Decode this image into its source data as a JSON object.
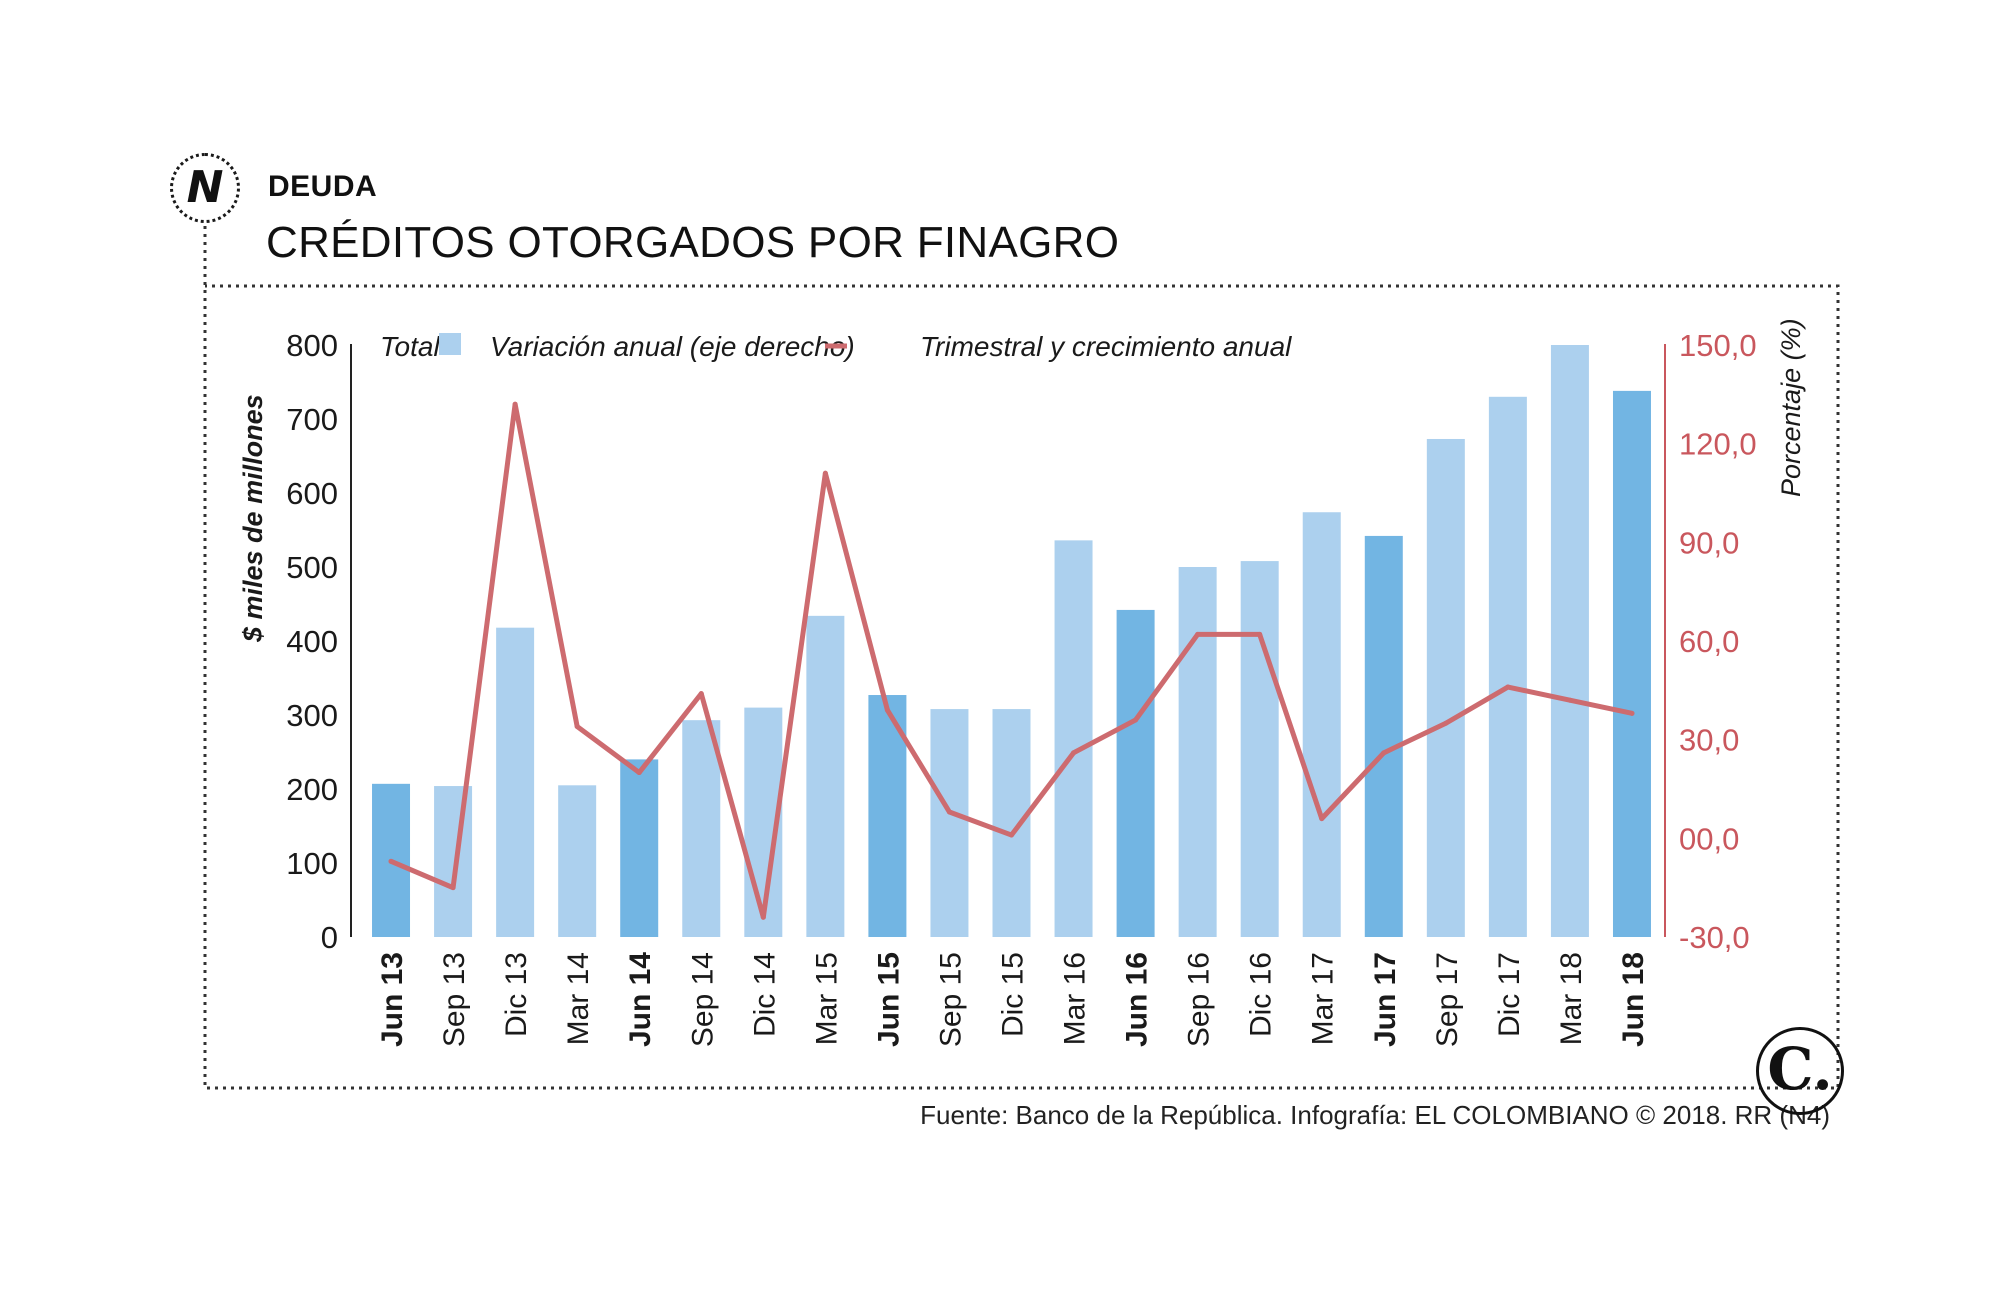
{
  "header": {
    "kicker": "DEUDA",
    "title": "CRÉDITOS OTORGADOS POR FINAGRO",
    "logo_letter": "N"
  },
  "footer": {
    "source": "Fuente: Banco de la República. Infografía: EL COLOMBIANO © 2018. RR (N4)",
    "brand_mark": "C."
  },
  "colors": {
    "bar_light": "#acd0ee",
    "bar_dark": "#72b5e3",
    "line": "#cd6b6f",
    "right_axis_text": "#c9575d",
    "frame": "#333333"
  },
  "chart_data": {
    "type": "bar",
    "categories": [
      "Jun 13",
      "Sep 13",
      "Dic 13",
      "Mar 14",
      "Jun 14",
      "Sep 14",
      "Dic 14",
      "Mar 15",
      "Jun 15",
      "Sep 15",
      "Dic 15",
      "Mar 16",
      "Jun 16",
      "Sep 16",
      "Dic 16",
      "Mar 17",
      "Jun 17",
      "Sep 17",
      "Dic 17",
      "Mar 18",
      "Jun 18"
    ],
    "highlighted_categories": [
      "Jun 13",
      "Jun 14",
      "Jun 15",
      "Jun 16",
      "Jun 17",
      "Jun 18"
    ],
    "series": [
      {
        "name": "Total",
        "type": "bar",
        "axis": "left",
        "values": [
          207,
          204,
          418,
          205,
          240,
          293,
          310,
          434,
          327,
          308,
          308,
          536,
          442,
          500,
          508,
          574,
          542,
          673,
          730,
          800,
          738
        ]
      },
      {
        "name": "Variación anual (eje derecho)",
        "type": "line",
        "axis": "right",
        "values": [
          -7,
          -15,
          132,
          34,
          20,
          44,
          -24,
          111,
          39,
          8,
          1,
          26,
          36,
          62,
          62,
          6,
          26,
          35,
          46,
          42,
          38
        ]
      }
    ],
    "legend": [
      "Total",
      "Variación anual (eje derecho)",
      "Trimestral y crecimiento anual"
    ],
    "legend_position": "top-left",
    "ylabel": "$ miles de millones",
    "y2label": "Porcentaje (%)",
    "ylim": [
      0,
      800
    ],
    "y2lim": [
      -30,
      150
    ],
    "yticks": [
      "0",
      "100",
      "200",
      "300",
      "400",
      "500",
      "600",
      "700",
      "800"
    ],
    "y2ticks": [
      "-30,0",
      "00,0",
      "30,0",
      "60,0",
      "90,0",
      "120,0",
      "150,0"
    ],
    "grid": false
  }
}
